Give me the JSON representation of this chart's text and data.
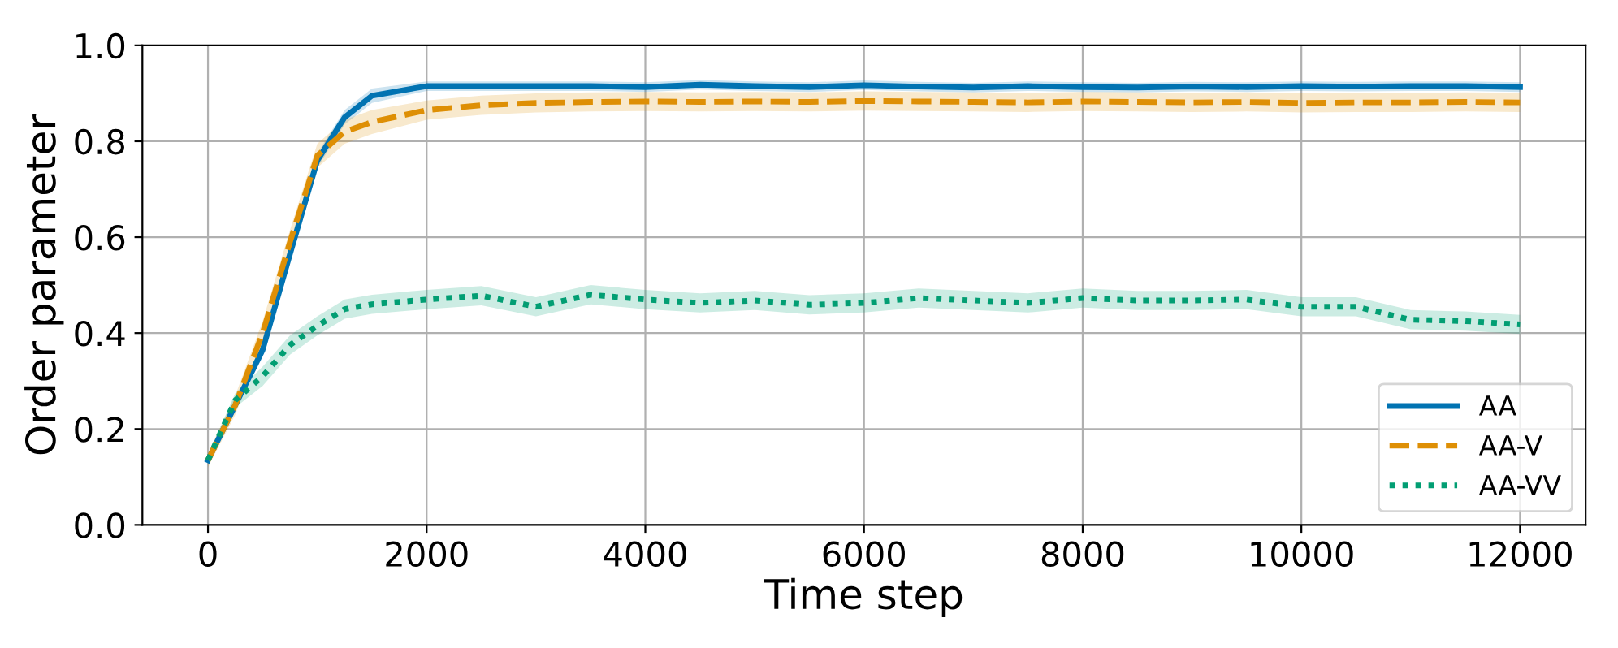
{
  "chart_data": {
    "type": "line",
    "xlabel": "Time step",
    "ylabel": "Order parameter",
    "xlim": [
      -600,
      12600
    ],
    "ylim": [
      0,
      1.0
    ],
    "xticks": [
      0,
      2000,
      4000,
      6000,
      8000,
      10000,
      12000
    ],
    "yticks": [
      {
        "value": 0,
        "label": "0.0"
      },
      0.2,
      0.4,
      0.6,
      0.8,
      {
        "value": 1,
        "label": "1.0"
      }
    ],
    "x": [
      0,
      250,
      500,
      750,
      1000,
      1250,
      1500,
      2000,
      2500,
      3000,
      3500,
      4000,
      4500,
      5000,
      5500,
      6000,
      6500,
      7000,
      7500,
      8000,
      8500,
      9000,
      9500,
      10000,
      10500,
      11000,
      11500,
      12000
    ],
    "grid": true,
    "legend": "bottom right",
    "marker": "none",
    "series": [
      {
        "name": "AA",
        "color": "#0173b2",
        "line_style": "solid",
        "values": [
          0.135,
          0.25,
          0.365,
          0.565,
          0.76,
          0.85,
          0.895,
          0.915,
          0.915,
          0.915,
          0.915,
          0.913,
          0.918,
          0.915,
          0.913,
          0.917,
          0.914,
          0.912,
          0.915,
          0.913,
          0.912,
          0.914,
          0.913,
          0.915,
          0.914,
          0.915,
          0.915,
          0.913
        ],
        "lower": [
          0.125,
          0.24,
          0.35,
          0.55,
          0.745,
          0.835,
          0.88,
          0.905,
          0.905,
          0.905,
          0.905,
          0.903,
          0.908,
          0.905,
          0.903,
          0.907,
          0.904,
          0.902,
          0.905,
          0.903,
          0.902,
          0.904,
          0.903,
          0.905,
          0.904,
          0.905,
          0.905,
          0.903
        ],
        "upper": [
          0.145,
          0.26,
          0.38,
          0.58,
          0.775,
          0.865,
          0.91,
          0.925,
          0.925,
          0.925,
          0.925,
          0.923,
          0.928,
          0.925,
          0.923,
          0.927,
          0.924,
          0.922,
          0.925,
          0.923,
          0.922,
          0.924,
          0.923,
          0.925,
          0.924,
          0.925,
          0.925,
          0.923
        ]
      },
      {
        "name": "AA-V",
        "color": "#de8f05",
        "line_style": "dashed",
        "values": [
          0.135,
          0.25,
          0.4,
          0.59,
          0.77,
          0.82,
          0.84,
          0.865,
          0.875,
          0.88,
          0.882,
          0.883,
          0.882,
          0.883,
          0.882,
          0.884,
          0.883,
          0.882,
          0.881,
          0.883,
          0.882,
          0.881,
          0.882,
          0.88,
          0.881,
          0.881,
          0.882,
          0.881
        ],
        "lower": [
          0.12,
          0.23,
          0.375,
          0.565,
          0.745,
          0.795,
          0.815,
          0.845,
          0.855,
          0.86,
          0.862,
          0.863,
          0.862,
          0.863,
          0.862,
          0.864,
          0.863,
          0.862,
          0.861,
          0.863,
          0.862,
          0.861,
          0.862,
          0.86,
          0.861,
          0.861,
          0.862,
          0.861
        ],
        "upper": [
          0.15,
          0.27,
          0.425,
          0.615,
          0.795,
          0.845,
          0.865,
          0.885,
          0.895,
          0.9,
          0.902,
          0.903,
          0.902,
          0.903,
          0.902,
          0.904,
          0.903,
          0.902,
          0.901,
          0.903,
          0.902,
          0.901,
          0.902,
          0.9,
          0.901,
          0.901,
          0.902,
          0.901
        ]
      },
      {
        "name": "AA-VV",
        "color": "#029e73",
        "line_style": "dotted",
        "values": [
          0.135,
          0.26,
          0.31,
          0.375,
          0.415,
          0.45,
          0.46,
          0.47,
          0.478,
          0.455,
          0.48,
          0.47,
          0.463,
          0.468,
          0.459,
          0.463,
          0.473,
          0.468,
          0.463,
          0.473,
          0.468,
          0.468,
          0.47,
          0.455,
          0.455,
          0.428,
          0.425,
          0.418
        ],
        "lower": [
          0.125,
          0.245,
          0.29,
          0.355,
          0.395,
          0.43,
          0.44,
          0.45,
          0.458,
          0.435,
          0.46,
          0.45,
          0.443,
          0.448,
          0.439,
          0.443,
          0.453,
          0.448,
          0.443,
          0.453,
          0.448,
          0.448,
          0.45,
          0.435,
          0.435,
          0.408,
          0.405,
          0.398
        ],
        "upper": [
          0.145,
          0.275,
          0.33,
          0.395,
          0.435,
          0.47,
          0.48,
          0.49,
          0.498,
          0.475,
          0.5,
          0.49,
          0.483,
          0.488,
          0.479,
          0.483,
          0.493,
          0.488,
          0.483,
          0.493,
          0.488,
          0.488,
          0.49,
          0.475,
          0.475,
          0.448,
          0.445,
          0.438
        ]
      }
    ]
  }
}
